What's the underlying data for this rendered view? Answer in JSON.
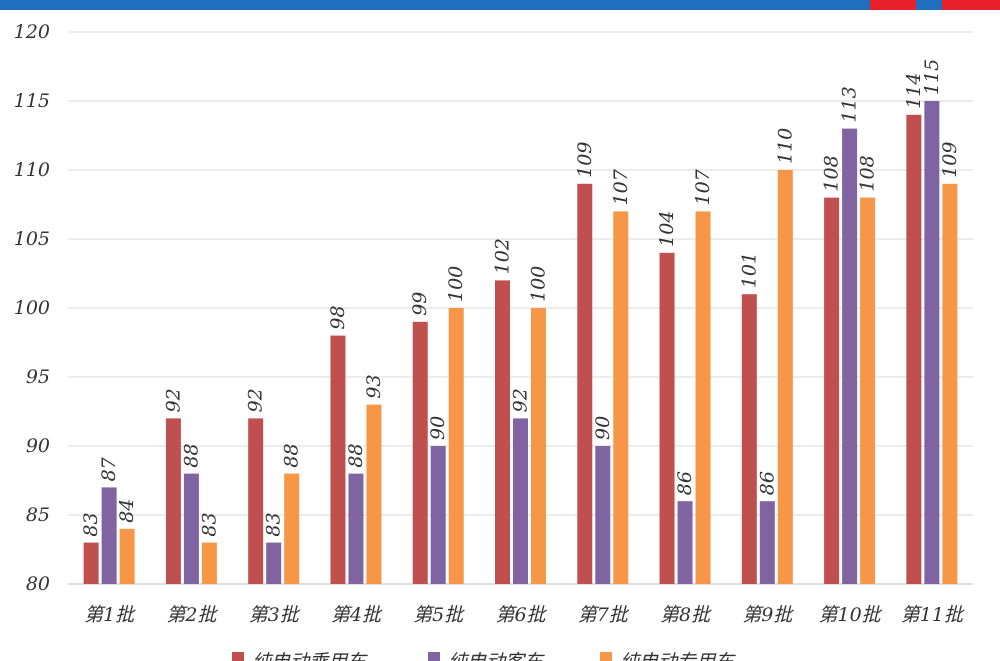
{
  "colors": {
    "banner": "#1f6fbf",
    "banner_accent": "#e8202a",
    "grid": "#d9d9d9",
    "axis": "#bfbfbf"
  },
  "chart_data": {
    "type": "bar",
    "title": "",
    "xlabel": "",
    "ylabel": "",
    "ylim": [
      80,
      120
    ],
    "yticks": [
      80,
      85,
      90,
      95,
      100,
      105,
      110,
      115,
      120
    ],
    "grid": true,
    "legend_position": "bottom",
    "categories": [
      "第1批",
      "第2批",
      "第3批",
      "第4批",
      "第5批",
      "第6批",
      "第7批",
      "第8批",
      "第9批",
      "第10批",
      "第11批"
    ],
    "series": [
      {
        "name": "纯电动乘用车",
        "color": "#c0504d",
        "values": [
          83,
          92,
          92,
          98,
          99,
          102,
          109,
          104,
          101,
          108,
          114
        ]
      },
      {
        "name": "纯电动客车",
        "color": "#8064a2",
        "values": [
          87,
          88,
          83,
          88,
          90,
          92,
          90,
          86,
          86,
          113,
          115
        ]
      },
      {
        "name": "纯电动专用车",
        "color": "#f79646",
        "values": [
          84,
          83,
          88,
          93,
          100,
          100,
          107,
          107,
          110,
          108,
          109
        ]
      }
    ]
  }
}
